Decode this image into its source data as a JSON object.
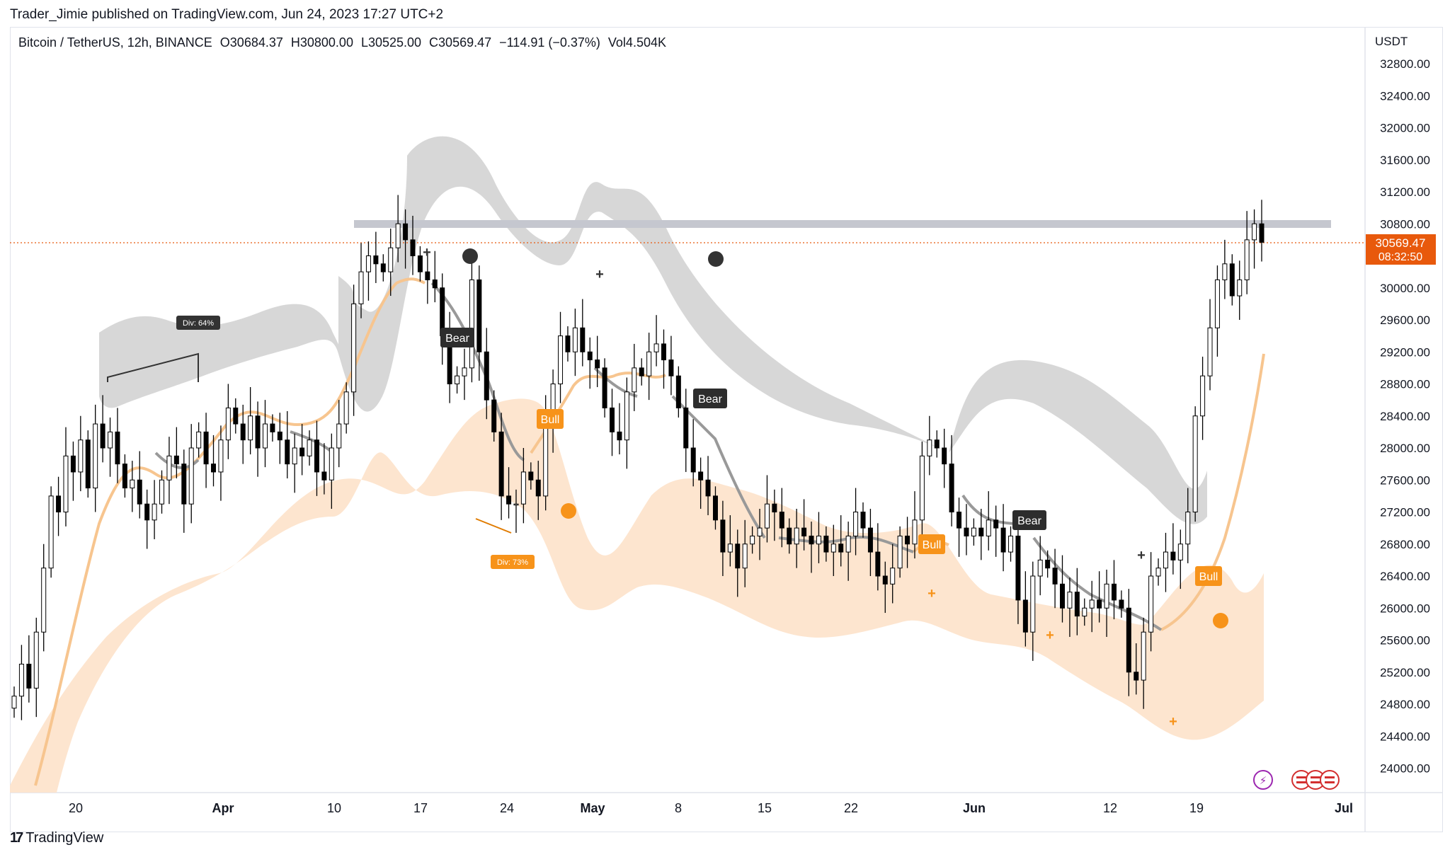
{
  "header": {
    "published": "Trader_Jimie published on TradingView.com, Jun 24, 2023 17:27 UTC+2"
  },
  "legend": {
    "symbol": "Bitcoin / TetherUS, 12h, BINANCE",
    "open": "O30684.37",
    "high": "H30800.00",
    "low": "L30525.00",
    "close": "C30569.47",
    "change": "−114.91 (−0.37%)",
    "volume": "Vol4.504K"
  },
  "price_axis": {
    "currency": "USDT",
    "ticks": [
      "32800.00",
      "32400.00",
      "32000.00",
      "31600.00",
      "31200.00",
      "30800.00",
      "30400.00",
      "30000.00",
      "29600.00",
      "29200.00",
      "28800.00",
      "28400.00",
      "28000.00",
      "27600.00",
      "27200.00",
      "26800.00",
      "26400.00",
      "26000.00",
      "25600.00",
      "25200.00",
      "24800.00",
      "24400.00",
      "24000.00"
    ],
    "last_price": "30569.47",
    "countdown": "08:32:50"
  },
  "time_axis": {
    "ticks": [
      "20",
      "Apr",
      "10",
      "17",
      "24",
      "May",
      "8",
      "15",
      "22",
      "Jun",
      "12",
      "19",
      "Jul"
    ]
  },
  "annotations": {
    "bear_labels": [
      "Bear",
      "Bear",
      "Bear"
    ],
    "bull_labels": [
      "Bull",
      "Bull",
      "Bull"
    ],
    "divergence_labels": [
      "Div: 64%",
      "Div: 73%"
    ]
  },
  "footer": {
    "brand": "TradingView"
  },
  "colors": {
    "up_candle": "#ffffff",
    "down_candle": "#000000",
    "bull_accent": "#f7931a",
    "bear_accent": "#333333",
    "last_price_bg": "#e8590c",
    "resistance_band": "#c5c7cf"
  },
  "chart_data": {
    "type": "candlestick",
    "title": "Bitcoin / TetherUS, 12h, BINANCE",
    "ylim": [
      23800,
      33000
    ],
    "resistance_level": 30800,
    "last_price": 30569.47,
    "closes": [
      24900,
      25300,
      25000,
      25700,
      26500,
      27400,
      27200,
      27900,
      27700,
      28100,
      27500,
      28300,
      28000,
      28200,
      27800,
      27500,
      27600,
      27300,
      27100,
      27300,
      27600,
      27900,
      27800,
      27300,
      28000,
      28200,
      27800,
      27700,
      28100,
      28500,
      28300,
      28100,
      28400,
      28000,
      28300,
      28200,
      28100,
      27800,
      28000,
      27900,
      28100,
      27700,
      27600,
      28000,
      28300,
      28700,
      29800,
      30200,
      30400,
      30300,
      30200,
      30500,
      30800,
      30600,
      30400,
      30200,
      30100,
      30000,
      29400,
      28800,
      28900,
      29000,
      30100,
      29200,
      28600,
      28200,
      27400,
      27300,
      27300,
      27700,
      27600,
      27400,
      28300,
      28800,
      29400,
      29200,
      29500,
      29200,
      29100,
      29000,
      28500,
      28200,
      28100,
      28700,
      29000,
      28900,
      29200,
      29300,
      29100,
      28900,
      28500,
      28000,
      27700,
      27600,
      27400,
      27100,
      26700,
      26800,
      26500,
      26800,
      26900,
      27000,
      27300,
      27200,
      27000,
      26800,
      27000,
      26900,
      26800,
      26900,
      26700,
      26800,
      26700,
      26900,
      27200,
      27000,
      26700,
      26400,
      26300,
      26500,
      26900,
      26800,
      27100,
      27900,
      28100,
      28000,
      27800,
      27200,
      27000,
      26900,
      27000,
      26900,
      27100,
      27000,
      26700,
      26900,
      26100,
      25700,
      26400,
      26600,
      26500,
      26300,
      26000,
      26200,
      25900,
      26000,
      26100,
      26000,
      26300,
      26100,
      26000,
      25200,
      25100,
      25700,
      26400,
      26500,
      26700,
      26600,
      26800,
      27200,
      28400,
      28900,
      29500,
      30100,
      30300,
      29900,
      30100,
      30600,
      30800,
      30569
    ]
  }
}
